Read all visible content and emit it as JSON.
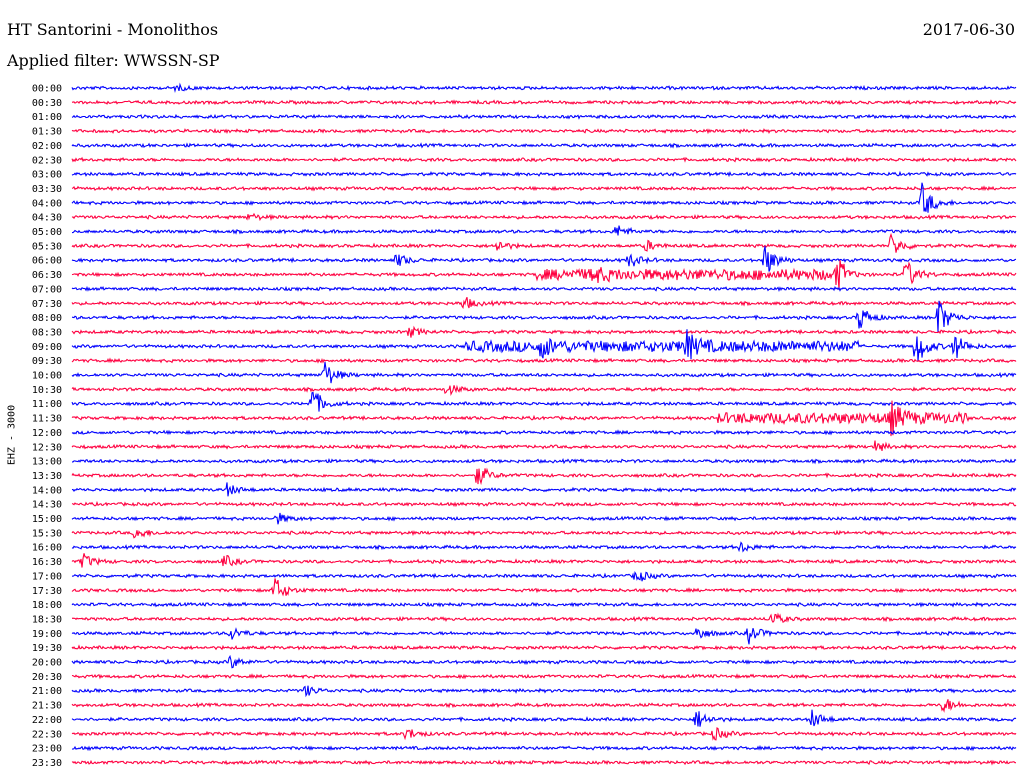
{
  "header": {
    "title": "HT Santorini - Monolithos",
    "date": "2017-06-30",
    "filter": "Applied filter: WWSSN-SP"
  },
  "chart_data": {
    "type": "line",
    "title": "HT Santorini - Monolithos",
    "ylabel": "EHZ - 3000",
    "colors": {
      "even_rows": "#0000ff",
      "odd_rows": "#ff0040"
    },
    "rows": [
      "00:00",
      "00:30",
      "01:00",
      "01:30",
      "02:00",
      "02:30",
      "03:00",
      "03:30",
      "04:00",
      "04:30",
      "05:00",
      "05:30",
      "06:00",
      "06:30",
      "07:00",
      "07:30",
      "08:00",
      "08:30",
      "09:00",
      "09:30",
      "10:00",
      "10:30",
      "11:00",
      "11:30",
      "12:00",
      "12:30",
      "13:00",
      "13:30",
      "14:00",
      "14:30",
      "15:00",
      "15:30",
      "16:00",
      "16:30",
      "17:00",
      "17:30",
      "18:00",
      "18:30",
      "19:00",
      "19:30",
      "20:00",
      "20:30",
      "21:00",
      "21:30",
      "22:00",
      "22:30",
      "23:00",
      "23:30"
    ],
    "x_minutes_per_row": 30,
    "bursts": [
      {
        "row": "00:00",
        "minute": 3.3,
        "amplitude": 3
      },
      {
        "row": "04:00",
        "minute": 27.0,
        "amplitude": 20
      },
      {
        "row": "04:30",
        "minute": 5.6,
        "amplitude": 4
      },
      {
        "row": "05:00",
        "minute": 17.3,
        "amplitude": 7
      },
      {
        "row": "05:30",
        "minute": 13.5,
        "amplitude": 6
      },
      {
        "row": "05:30",
        "minute": 18.2,
        "amplitude": 6
      },
      {
        "row": "05:30",
        "minute": 26.0,
        "amplitude": 14
      },
      {
        "row": "06:00",
        "minute": 10.3,
        "amplitude": 8
      },
      {
        "row": "06:00",
        "minute": 17.7,
        "amplitude": 8
      },
      {
        "row": "06:00",
        "minute": 22.0,
        "amplitude": 18
      },
      {
        "row": "06:30",
        "minute": 16.5,
        "amplitude": 8
      },
      {
        "row": "06:30",
        "minute": 24.3,
        "amplitude": 14
      },
      {
        "row": "06:30",
        "minute": 26.5,
        "amplitude": 16
      },
      {
        "row": "07:30",
        "minute": 12.4,
        "amplitude": 8
      },
      {
        "row": "08:00",
        "minute": 25.0,
        "amplitude": 14
      },
      {
        "row": "08:00",
        "minute": 27.5,
        "amplitude": 22
      },
      {
        "row": "08:30",
        "minute": 10.7,
        "amplitude": 6
      },
      {
        "row": "09:00",
        "minute": 14.9,
        "amplitude": 10
      },
      {
        "row": "09:00",
        "minute": 19.5,
        "amplitude": 14
      },
      {
        "row": "09:00",
        "minute": 26.8,
        "amplitude": 22
      },
      {
        "row": "09:00",
        "minute": 28.0,
        "amplitude": 16
      },
      {
        "row": "10:00",
        "minute": 8.0,
        "amplitude": 16
      },
      {
        "row": "10:30",
        "minute": 11.9,
        "amplitude": 6
      },
      {
        "row": "11:00",
        "minute": 7.6,
        "amplitude": 18
      },
      {
        "row": "11:30",
        "minute": 26.0,
        "amplitude": 16
      },
      {
        "row": "12:30",
        "minute": 25.5,
        "amplitude": 6
      },
      {
        "row": "13:30",
        "minute": 12.9,
        "amplitude": 12
      },
      {
        "row": "14:00",
        "minute": 4.9,
        "amplitude": 7
      },
      {
        "row": "15:00",
        "minute": 6.5,
        "amplitude": 6
      },
      {
        "row": "15:30",
        "minute": 2.0,
        "amplitude": 7
      },
      {
        "row": "16:00",
        "minute": 21.2,
        "amplitude": 6
      },
      {
        "row": "16:30",
        "minute": 0.3,
        "amplitude": 9
      },
      {
        "row": "16:30",
        "minute": 4.8,
        "amplitude": 7
      },
      {
        "row": "17:00",
        "minute": 17.9,
        "amplitude": 8
      },
      {
        "row": "17:30",
        "minute": 6.4,
        "amplitude": 16
      },
      {
        "row": "18:30",
        "minute": 22.2,
        "amplitude": 8
      },
      {
        "row": "19:00",
        "minute": 5.0,
        "amplitude": 8
      },
      {
        "row": "19:00",
        "minute": 19.8,
        "amplitude": 9
      },
      {
        "row": "19:00",
        "minute": 21.5,
        "amplitude": 10
      },
      {
        "row": "20:00",
        "minute": 5.0,
        "amplitude": 7
      },
      {
        "row": "21:00",
        "minute": 7.4,
        "amplitude": 6
      },
      {
        "row": "21:30",
        "minute": 27.7,
        "amplitude": 8
      },
      {
        "row": "22:00",
        "minute": 19.8,
        "amplitude": 12
      },
      {
        "row": "22:00",
        "minute": 23.5,
        "amplitude": 10
      },
      {
        "row": "22:30",
        "minute": 10.6,
        "amplitude": 7
      },
      {
        "row": "22:30",
        "minute": 20.4,
        "amplitude": 7
      }
    ],
    "noisy_segments": [
      {
        "row": "06:30",
        "from_minute": 14.7,
        "to_minute": 24.6
      },
      {
        "row": "09:00",
        "from_minute": 12.5,
        "to_minute": 25.0
      },
      {
        "row": "11:30",
        "from_minute": 20.5,
        "to_minute": 28.5
      }
    ]
  }
}
